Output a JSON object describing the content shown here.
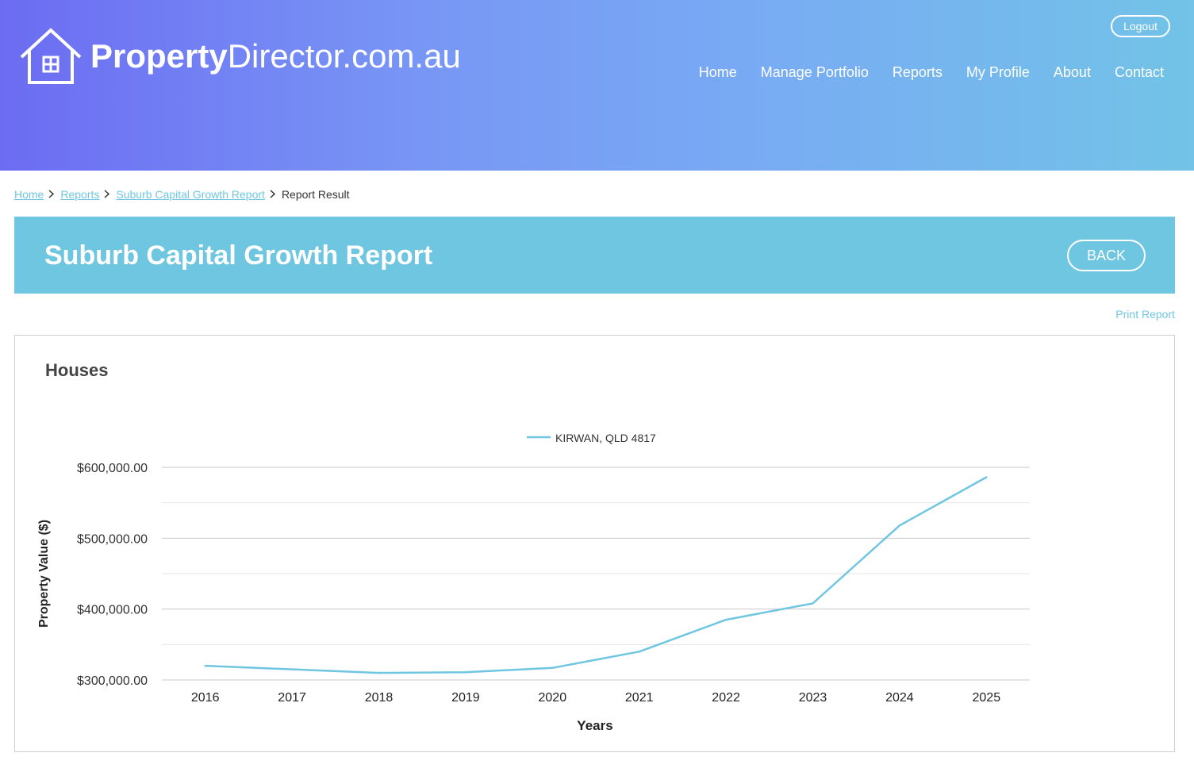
{
  "header": {
    "brand_bold": "Property",
    "brand_rest": "Director.com.au",
    "logout_label": "Logout",
    "nav": [
      "Home",
      "Manage Portfolio",
      "Reports",
      "My Profile",
      "About",
      "Contact"
    ],
    "colors": {
      "gradient_start": "#6c6cf2",
      "gradient_end": "#72c3e7"
    }
  },
  "breadcrumb": {
    "items": [
      "Home",
      "Reports",
      "Suburb Capital Growth Report"
    ],
    "current": "Report Result"
  },
  "banner": {
    "title": "Suburb Capital Growth Report",
    "back_label": "BACK",
    "color": "#6fc6e1"
  },
  "print_label": "Print Report",
  "panel": {
    "title": "Houses"
  },
  "chart_data": {
    "type": "line",
    "xlabel": "Years",
    "ylabel": "Property Value ($)",
    "categories": [
      "2016",
      "2017",
      "2018",
      "2019",
      "2020",
      "2021",
      "2022",
      "2023",
      "2024",
      "2025"
    ],
    "series": [
      {
        "name": "KIRWAN, QLD 4817",
        "color": "#6fc6e1",
        "values": [
          320000,
          315000,
          310000,
          311000,
          317000,
          340000,
          385000,
          408000,
          518000,
          586000
        ]
      }
    ],
    "ylim": [
      300000,
      600000
    ],
    "yticks": [
      "$300,000.00",
      "$400,000.00",
      "$500,000.00",
      "$600,000.00"
    ],
    "ytick_values": [
      300000,
      400000,
      500000,
      600000
    ],
    "grid": true,
    "legend": "top-center"
  }
}
